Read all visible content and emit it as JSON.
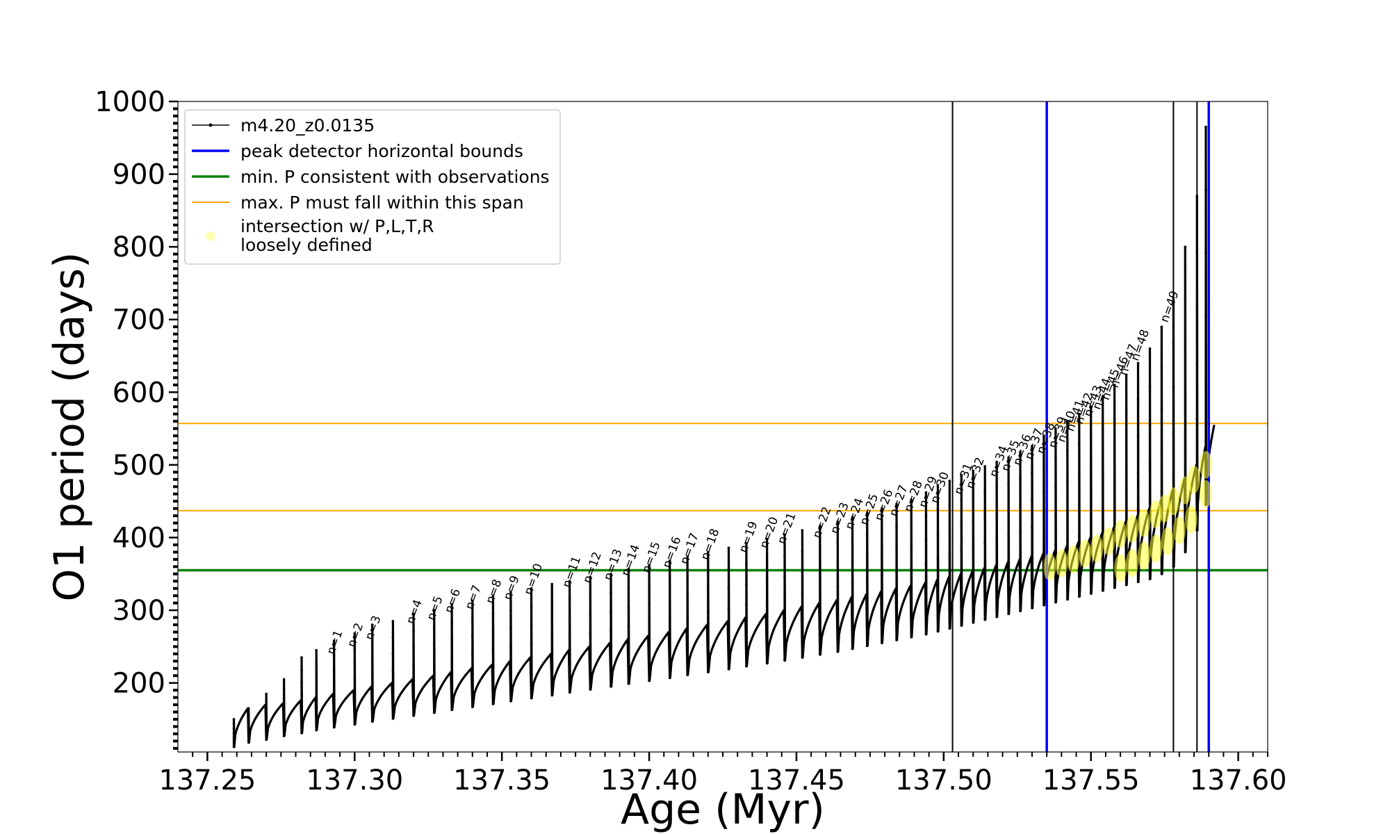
{
  "chart_data": {
    "type": "line",
    "title": "",
    "xlabel": "Age (Myr)",
    "ylabel": "O1 period (days)",
    "xlim": [
      137.24,
      137.61
    ],
    "ylim": [
      105,
      1000
    ],
    "x_ticks": [
      "137.25",
      "137.30",
      "137.35",
      "137.40",
      "137.45",
      "137.50",
      "137.55",
      "137.60"
    ],
    "x_tick_values": [
      137.25,
      137.3,
      137.35,
      137.4,
      137.45,
      137.5,
      137.55,
      137.6
    ],
    "y_ticks": [
      "200",
      "300",
      "400",
      "500",
      "600",
      "700",
      "800",
      "900",
      "1000"
    ],
    "y_tick_values": [
      200,
      300,
      400,
      500,
      600,
      700,
      800,
      900,
      1000
    ],
    "grid": false,
    "legend_position": "top-left",
    "legend": [
      {
        "label": "m4.20_z0.0135",
        "marker": "line-dot",
        "color": "#000000"
      },
      {
        "label": "peak detector horizontal bounds",
        "marker": "line",
        "color": "#0000ff"
      },
      {
        "label": "min. P consistent with observations",
        "marker": "line",
        "color": "#008000"
      },
      {
        "label": "max. P must fall within this span",
        "marker": "line",
        "color": "#ffa500"
      },
      {
        "label": "intersection w/ P,L,T,R",
        "label_line2": "loosely defined",
        "marker": "dot",
        "color": "#ffff66"
      }
    ],
    "series": [
      {
        "name": "m4.20_z0.0135",
        "color": "#000000",
        "pulse_ages": [
          137.259,
          137.264,
          137.27,
          137.276,
          137.282,
          137.287,
          137.293,
          137.3,
          137.306,
          137.313,
          137.32,
          137.327,
          137.333,
          137.34,
          137.347,
          137.353,
          137.36,
          137.367,
          137.373,
          137.38,
          137.387,
          137.393,
          137.4,
          137.407,
          137.413,
          137.42,
          137.427,
          137.433,
          137.44,
          137.446,
          137.452,
          137.458,
          137.464,
          137.469,
          137.474,
          137.479,
          137.484,
          137.489,
          137.494,
          137.498,
          137.502,
          137.506,
          137.51,
          137.514,
          137.518,
          137.522,
          137.526,
          137.53,
          137.534,
          137.538,
          137.542,
          137.546,
          137.55,
          137.554,
          137.558,
          137.562,
          137.566,
          137.57,
          137.574,
          137.578,
          137.582,
          137.586,
          137.589
        ],
        "envelope_min_days": [
          112,
          118,
          122,
          127,
          131,
          135,
          139,
          143,
          147,
          151,
          155,
          159,
          163,
          167,
          171,
          175,
          179,
          183,
          187,
          191,
          195,
          199,
          203,
          207,
          211,
          215,
          219,
          223,
          227,
          231,
          235,
          239,
          243,
          247,
          251,
          255,
          259,
          263,
          267,
          271,
          275,
          279,
          283,
          287,
          291,
          295,
          299,
          303,
          307,
          311,
          315,
          319,
          323,
          327,
          331,
          335,
          339,
          343,
          350,
          360,
          380,
          410,
          445
        ],
        "envelope_max_days": [
          165,
          170,
          172,
          176,
          180,
          185,
          190,
          195,
          200,
          205,
          210,
          215,
          220,
          225,
          230,
          235,
          240,
          245,
          250,
          255,
          260,
          265,
          270,
          275,
          280,
          285,
          290,
          295,
          300,
          305,
          310,
          314,
          318,
          322,
          326,
          330,
          334,
          338,
          342,
          346,
          350,
          354,
          358,
          362,
          366,
          370,
          374,
          378,
          382,
          388,
          394,
          400,
          406,
          414,
          422,
          430,
          440,
          452,
          466,
          482,
          500,
          525,
          555
        ],
        "spike_peak_days": [
          150,
          165,
          185,
          205,
          235,
          245,
          258,
          268,
          280,
          285,
          295,
          300,
          308,
          313,
          320,
          325,
          330,
          336,
          340,
          346,
          350,
          357,
          362,
          368,
          374,
          380,
          386,
          392,
          398,
          404,
          410,
          416,
          422,
          428,
          434,
          440,
          446,
          452,
          462,
          472,
          478,
          486,
          492,
          498,
          504,
          510,
          518,
          526,
          540,
          550,
          560,
          570,
          580,
          594,
          610,
          624,
          640,
          660,
          690,
          730,
          800,
          870,
          965
        ]
      }
    ],
    "pulse_labels": [
      {
        "text": "n=1",
        "x": 137.293,
        "y": 238
      },
      {
        "text": "n=2",
        "x": 137.3,
        "y": 248
      },
      {
        "text": "n=3",
        "x": 137.306,
        "y": 258
      },
      {
        "text": "n=4",
        "x": 137.32,
        "y": 280
      },
      {
        "text": "n=5",
        "x": 137.327,
        "y": 285
      },
      {
        "text": "n=6",
        "x": 137.333,
        "y": 295
      },
      {
        "text": "n=7",
        "x": 137.34,
        "y": 300
      },
      {
        "text": "n=8",
        "x": 137.347,
        "y": 308
      },
      {
        "text": "n=9",
        "x": 137.353,
        "y": 313
      },
      {
        "text": "n=10",
        "x": 137.36,
        "y": 320
      },
      {
        "text": "n=11",
        "x": 137.373,
        "y": 330
      },
      {
        "text": "n=12",
        "x": 137.38,
        "y": 336
      },
      {
        "text": "n=13",
        "x": 137.387,
        "y": 340
      },
      {
        "text": "n=14",
        "x": 137.393,
        "y": 346
      },
      {
        "text": "n=15",
        "x": 137.4,
        "y": 350
      },
      {
        "text": "n=16",
        "x": 137.407,
        "y": 357
      },
      {
        "text": "n=17",
        "x": 137.413,
        "y": 362
      },
      {
        "text": "n=18",
        "x": 137.42,
        "y": 368
      },
      {
        "text": "n=19",
        "x": 137.433,
        "y": 378
      },
      {
        "text": "n=20",
        "x": 137.44,
        "y": 384
      },
      {
        "text": "n=21",
        "x": 137.446,
        "y": 390
      },
      {
        "text": "n=22",
        "x": 137.458,
        "y": 398
      },
      {
        "text": "n=23",
        "x": 137.464,
        "y": 404
      },
      {
        "text": "n=24",
        "x": 137.469,
        "y": 410
      },
      {
        "text": "n=25",
        "x": 137.474,
        "y": 416
      },
      {
        "text": "n=26",
        "x": 137.479,
        "y": 422
      },
      {
        "text": "n=27",
        "x": 137.484,
        "y": 428
      },
      {
        "text": "n=28",
        "x": 137.489,
        "y": 434
      },
      {
        "text": "n=29",
        "x": 137.494,
        "y": 440
      },
      {
        "text": "n=30",
        "x": 137.498,
        "y": 446
      },
      {
        "text": "n=31",
        "x": 137.506,
        "y": 458
      },
      {
        "text": "n=32",
        "x": 137.51,
        "y": 466
      },
      {
        "text": "n=34",
        "x": 137.518,
        "y": 482
      },
      {
        "text": "n=35",
        "x": 137.522,
        "y": 490
      },
      {
        "text": "n=36",
        "x": 137.526,
        "y": 498
      },
      {
        "text": "n=37",
        "x": 137.53,
        "y": 506
      },
      {
        "text": "n=38",
        "x": 137.534,
        "y": 514
      },
      {
        "text": "n=39",
        "x": 137.538,
        "y": 522
      },
      {
        "text": "n=40",
        "x": 137.541,
        "y": 530
      },
      {
        "text": "n=41",
        "x": 137.544,
        "y": 545
      },
      {
        "text": "n=42",
        "x": 137.547,
        "y": 555
      },
      {
        "text": "n=43",
        "x": 137.55,
        "y": 565
      },
      {
        "text": "n=44",
        "x": 137.553,
        "y": 575
      },
      {
        "text": "n=45",
        "x": 137.556,
        "y": 588
      },
      {
        "text": "n=46",
        "x": 137.559,
        "y": 605
      },
      {
        "text": "n=47",
        "x": 137.562,
        "y": 622
      },
      {
        "text": "n=48",
        "x": 137.566,
        "y": 642
      },
      {
        "text": "n=49",
        "x": 137.576,
        "y": 695
      }
    ],
    "vertical_lines": [
      {
        "x": 137.503,
        "color": "#000000",
        "role": "series spike"
      },
      {
        "x": 137.578,
        "color": "#000000",
        "role": "series spike"
      },
      {
        "x": 137.586,
        "color": "#000000",
        "role": "series spike"
      },
      {
        "x": 137.535,
        "color": "#0000ff",
        "role": "peak detector horizontal bounds"
      },
      {
        "x": 137.59,
        "color": "#0000ff",
        "role": "peak detector horizontal bounds"
      }
    ],
    "horizontal_lines": [
      {
        "y": 355,
        "color": "#008000",
        "role": "min. P consistent with observations"
      },
      {
        "y": 437,
        "color": "#ffa500",
        "role": "max. P must fall within this span"
      },
      {
        "y": 557,
        "color": "#ffa500",
        "role": "max. P must fall within this span"
      }
    ],
    "intersection_points": [
      {
        "x": 137.536,
        "y": 360
      },
      {
        "x": 137.54,
        "y": 365
      },
      {
        "x": 137.544,
        "y": 370
      },
      {
        "x": 137.548,
        "y": 378
      },
      {
        "x": 137.552,
        "y": 385
      },
      {
        "x": 137.556,
        "y": 395
      },
      {
        "x": 137.56,
        "y": 405
      },
      {
        "x": 137.564,
        "y": 412
      },
      {
        "x": 137.568,
        "y": 420
      },
      {
        "x": 137.572,
        "y": 432
      },
      {
        "x": 137.575,
        "y": 440
      },
      {
        "x": 137.578,
        "y": 450
      },
      {
        "x": 137.582,
        "y": 465
      },
      {
        "x": 137.585,
        "y": 480
      },
      {
        "x": 137.589,
        "y": 500
      },
      {
        "x": 137.56,
        "y": 358
      },
      {
        "x": 137.564,
        "y": 365
      },
      {
        "x": 137.568,
        "y": 375
      },
      {
        "x": 137.572,
        "y": 385
      },
      {
        "x": 137.576,
        "y": 395
      },
      {
        "x": 137.58,
        "y": 410
      },
      {
        "x": 137.584,
        "y": 425
      },
      {
        "x": 137.589,
        "y": 460
      }
    ]
  }
}
